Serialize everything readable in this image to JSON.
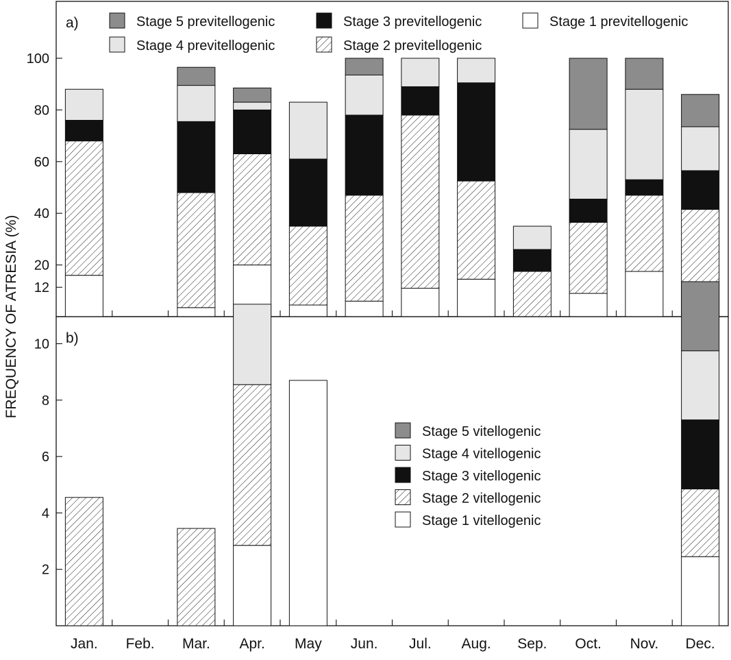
{
  "chart_data": {
    "type": "bar",
    "stacked": true,
    "ylabel": "FREQUENCY OF ATRESIA (%)",
    "categories": [
      "Jan.",
      "Feb.",
      "Mar.",
      "Apr.",
      "May",
      "Jun.",
      "Jul.",
      "Aug.",
      "Sep.",
      "Oct.",
      "Nov.",
      "Dec."
    ],
    "colors": {
      "stage1": "#ffffff",
      "stage2": "hatch",
      "stage3": "#111111",
      "stage4": "#e6e6e6",
      "stage5": "#8c8c8c"
    },
    "panels": [
      {
        "label": "a)",
        "ylim": [
          0,
          105
        ],
        "yticks": [
          20,
          40,
          60,
          80,
          100
        ],
        "legend": {
          "placement": "top",
          "order": [
            "stage5",
            "stage3",
            "stage1",
            "stage4",
            "stage2"
          ],
          "labels": {
            "stage1": "Stage 1 previtellogenic",
            "stage2": "Stage 2 previtellogenic",
            "stage3": "Stage 3 previtellogenic",
            "stage4": "Stage 4 previtellogenic",
            "stage5": "Stage 5 previtellogenic"
          }
        },
        "series": [
          {
            "key": "stage1",
            "name": "Stage 1 previtellogenic",
            "values": [
              16,
              0,
              3.5,
              20,
              4.5,
              6,
              11,
              14.5,
              0,
              9,
              17.5,
              0
            ]
          },
          {
            "key": "stage2",
            "name": "Stage 2 previtellogenic",
            "values": [
              52,
              0,
              44.5,
              43,
              30.5,
              41,
              67,
              38,
              17.5,
              27.5,
              29.5,
              41.5
            ]
          },
          {
            "key": "stage3",
            "name": "Stage 3 previtellogenic",
            "values": [
              8,
              0,
              27.5,
              17,
              26,
              31,
              11,
              38,
              8.5,
              9,
              6,
              15
            ]
          },
          {
            "key": "stage4",
            "name": "Stage 4 previtellogenic",
            "values": [
              12,
              0,
              14,
              3,
              22,
              15.5,
              11,
              9.5,
              9,
              27,
              35,
              17
            ]
          },
          {
            "key": "stage5",
            "name": "Stage 5 previtellogenic",
            "values": [
              0,
              0,
              7,
              5.5,
              0,
              6.5,
              0,
              0,
              0,
              27.5,
              12,
              12.5
            ]
          }
        ]
      },
      {
        "label": "b)",
        "ylim": [
          0,
          14
        ],
        "yticks": [
          2,
          4,
          6,
          8,
          10,
          12
        ],
        "legend": {
          "placement": "center-right",
          "order": [
            "stage5",
            "stage4",
            "stage3",
            "stage2",
            "stage1"
          ],
          "labels": {
            "stage1": "Stage 1 vitellogenic",
            "stage2": "Stage 2 vitellogenic",
            "stage3": "Stage 3 vitellogenic",
            "stage4": "Stage 4 vitellogenic",
            "stage5": "Stage 5 vitellogenic"
          }
        },
        "series": [
          {
            "key": "stage1",
            "name": "Stage 1 vitellogenic",
            "values": [
              0,
              0,
              0,
              2.85,
              8.7,
              0,
              0,
              0,
              0,
              0,
              0,
              2.45
            ]
          },
          {
            "key": "stage2",
            "name": "Stage 2 vitellogenic",
            "values": [
              4.55,
              0,
              3.45,
              5.7,
              0,
              0,
              0,
              0,
              0,
              0,
              0,
              2.4
            ]
          },
          {
            "key": "stage3",
            "name": "Stage 3 vitellogenic",
            "values": [
              0,
              0,
              0,
              0,
              0,
              0,
              0,
              0,
              0,
              0,
              0,
              2.45
            ]
          },
          {
            "key": "stage4",
            "name": "Stage 4 vitellogenic",
            "values": [
              0,
              0,
              0,
              2.85,
              0,
              0,
              0,
              0,
              0,
              0,
              0,
              2.45
            ]
          },
          {
            "key": "stage5",
            "name": "Stage 5 vitellogenic",
            "values": [
              0,
              0,
              0,
              0,
              0,
              0,
              0,
              0,
              0,
              0,
              0,
              2.45
            ]
          }
        ]
      }
    ]
  }
}
